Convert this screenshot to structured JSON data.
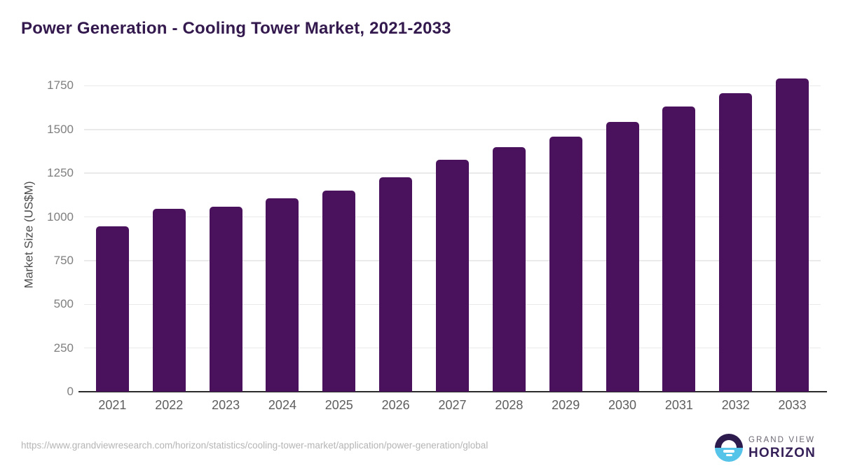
{
  "header": {
    "title": "Power Generation - Cooling Tower Market, 2021-2033"
  },
  "chart_data": {
    "type": "bar",
    "title": "Power Generation - Cooling Tower Market, 2021-2033",
    "categories": [
      "2021",
      "2022",
      "2023",
      "2024",
      "2025",
      "2026",
      "2027",
      "2028",
      "2029",
      "2030",
      "2031",
      "2032",
      "2033"
    ],
    "values": [
      945,
      1048,
      1060,
      1105,
      1152,
      1228,
      1326,
      1400,
      1458,
      1542,
      1630,
      1706,
      1792
    ],
    "xlabel": "",
    "ylabel": "Market Size (US$M)",
    "ylim": [
      0,
      1800
    ],
    "yticks": [
      0,
      250,
      500,
      750,
      1000,
      1250,
      1500,
      1750
    ],
    "grid": true,
    "legend_position": "none",
    "bar_color": "#4A115C"
  },
  "footer": {
    "source_url": "https://www.grandviewresearch.com/horizon/statistics/cooling-tower-market/application/power-generation/global",
    "logo": {
      "line1": "GRAND VIEW",
      "line2": "HORIZON"
    }
  },
  "colors": {
    "title_text": "#33194D",
    "bar": "#4A115C",
    "gridline": "#EAEAEA",
    "baseline": "#2B2B2B",
    "y_tick_text": "#7F7F7F",
    "x_tick_text": "#5E5E5E",
    "axis_title_text": "#4C4C4C",
    "url_text": "#B5B5B5",
    "logo_purple": "#2D1B4E",
    "logo_blue": "#56C3E9",
    "logo_top_text": "#6B6672",
    "logo_bottom_text": "#362058"
  }
}
